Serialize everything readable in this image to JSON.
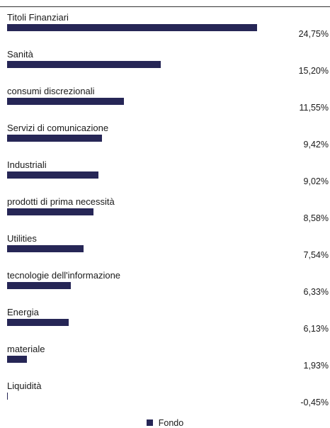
{
  "chart_data": {
    "type": "bar",
    "orientation": "horizontal",
    "categories": [
      "Titoli Finanziari",
      "Sanità",
      "consumi discrezionali",
      "Servizi di comunicazione",
      "Industriali",
      "prodotti di prima necessità",
      "Utilities",
      "tecnologie dell'informazione",
      "Energia",
      "materiale",
      "Liquidità"
    ],
    "series": [
      {
        "name": "Fondo",
        "color": "#262656",
        "values": [
          24.75,
          15.2,
          11.55,
          9.42,
          9.02,
          8.58,
          7.54,
          6.33,
          6.13,
          1.93,
          -0.45
        ],
        "labels": [
          "24,75%",
          "15,20%",
          "11,55%",
          "9,42%",
          "9,02%",
          "8,58%",
          "7,54%",
          "6,33%",
          "6,13%",
          "1,93%",
          "-0,45%"
        ]
      }
    ],
    "title": "",
    "xlabel": "",
    "ylabel": "",
    "legend": "bottom-center",
    "grid": false
  }
}
